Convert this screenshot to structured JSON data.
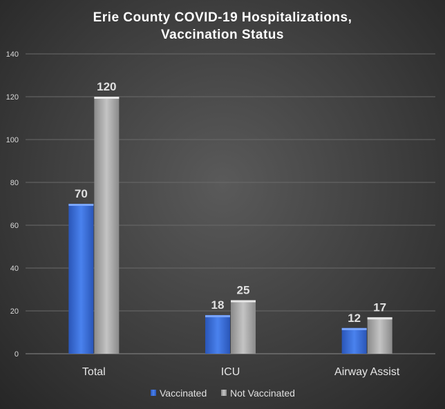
{
  "chart_data": {
    "type": "bar",
    "title_lines": [
      "Erie County  COVID-19 Hospitalizations,",
      "Vaccination Status"
    ],
    "categories": [
      "Total",
      "ICU",
      "Airway Assist"
    ],
    "series": [
      {
        "name": "Vaccinated",
        "values": [
          70,
          18,
          12
        ],
        "color": "#3a6fd8"
      },
      {
        "name": "Not Vaccinated",
        "values": [
          120,
          25,
          17
        ],
        "color": "#a8a8a8"
      }
    ],
    "ylim": [
      0,
      140
    ],
    "yticks": [
      0,
      20,
      40,
      60,
      80,
      100,
      120,
      140
    ],
    "xlabel": "",
    "ylabel": "",
    "grid": true,
    "legend_position": "bottom"
  }
}
